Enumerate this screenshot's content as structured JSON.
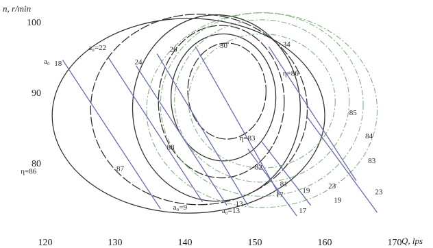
{
  "chart_data": {
    "type": "line",
    "xlabel": "Q, lps",
    "ylabel": "n, r/min",
    "x_ticks": [
      "120",
      "130",
      "140",
      "150",
      "160",
      "170"
    ],
    "y_ticks": [
      "80",
      "90",
      "100"
    ],
    "xlim": [
      120,
      170
    ],
    "ylim": [
      73,
      100
    ],
    "grid": false,
    "colors": {
      "blade": "#6a6ab8",
      "eff_inner": "#333333",
      "eff_outer": "#7fb07f",
      "text": "#222222"
    },
    "efficiency_contours": [
      {
        "value": 83,
        "label": "η=83",
        "style": "inner",
        "cx": 146,
        "cy": 90.2,
        "rx": 5.6,
        "ry": 6.8
      },
      {
        "value": 82,
        "label": "82",
        "style": "inner",
        "cx": 145.5,
        "cy": 89.3,
        "rx": 7.5,
        "ry": 9.0
      },
      {
        "value": 81,
        "label": "81",
        "style": "inner",
        "cx": 145.2,
        "cy": 88.7,
        "rx": 9.0,
        "ry": 10.8
      },
      {
        "value": 88,
        "label": "88",
        "style": "inner",
        "cx": 144.5,
        "cy": 87.8,
        "rx": 12.0,
        "ry": 13.2
      },
      {
        "value": 87,
        "label": "87",
        "style": "inner",
        "cx": 142.0,
        "cy": 87.6,
        "rx": 15.5,
        "ry": 13.5
      },
      {
        "value": 86,
        "label": "η=86",
        "style": "inner",
        "cx": 140.5,
        "cy": 86.7,
        "rx": 19.5,
        "ry": 13.8
      },
      {
        "value": 85,
        "label": "85",
        "style": "outer",
        "cx": 151.0,
        "cy": 88.8,
        "rx": 12.5,
        "ry": 11.5
      },
      {
        "value": 84,
        "label": "84",
        "style": "outer",
        "cx": 151.0,
        "cy": 88.3,
        "rx": 14.5,
        "ry": 13.0
      },
      {
        "value": 83,
        "label": "83",
        "style": "outer",
        "cx": 151.0,
        "cy": 87.5,
        "rx": 16.5,
        "ry": 13.8
      },
      {
        "value": 86,
        "label": "η=86",
        "style": "outer",
        "cx": 151.0,
        "cy": 88.8,
        "rx": 10.5,
        "ry": 9.5
      }
    ],
    "blade_angle_lines": [
      {
        "label": "18",
        "x1": 122.5,
        "y1": 94.6,
        "x2": 136.5,
        "y2": 73.5
      },
      {
        "label": "22",
        "x1": 129.0,
        "y1": 95.0,
        "x2": 142.5,
        "y2": 74.5
      },
      {
        "label": "24",
        "x1": 133.0,
        "y1": 93.8,
        "x2": 146.0,
        "y2": 74.0
      },
      {
        "label": "26",
        "x1": 136.0,
        "y1": 95.5,
        "x2": 149.0,
        "y2": 74.0
      },
      {
        "label": "30",
        "x1": 141.5,
        "y1": 96.5,
        "x2": 153.5,
        "y2": 75.5
      },
      {
        "label": "34",
        "x1": 152.0,
        "y1": 96.5,
        "x2": 164.5,
        "y2": 77.5
      },
      {
        "label": "17",
        "x1": 149.0,
        "y1": 82.0,
        "x2": 156.0,
        "y2": 72.5
      },
      {
        "label": "19",
        "x1": 151.0,
        "y1": 83.0,
        "x2": 158.0,
        "y2": 74.0
      },
      {
        "label": "23",
        "x1": 157.5,
        "y1": 86.5,
        "x2": 167.5,
        "y2": 73.0
      }
    ],
    "annotations": [
      {
        "text": "a₀",
        "x": 119.8,
        "y": 94.1
      },
      {
        "text": "18",
        "x": 121.3,
        "y": 93.8
      },
      {
        "text": "a₀=22",
        "x": 126.2,
        "y": 96.0
      },
      {
        "text": "24",
        "x": 132.8,
        "y": 94.0
      },
      {
        "text": "26",
        "x": 137.8,
        "y": 95.8
      },
      {
        "text": "30",
        "x": 145.0,
        "y": 96.3
      },
      {
        "text": "34",
        "x": 154.0,
        "y": 96.5
      },
      {
        "text": "η=86",
        "x": 154.0,
        "y": 92.4
      },
      {
        "text": "85",
        "x": 163.5,
        "y": 86.8
      },
      {
        "text": "84",
        "x": 165.8,
        "y": 83.5
      },
      {
        "text": "83",
        "x": 166.2,
        "y": 80.0
      },
      {
        "text": "88",
        "x": 137.4,
        "y": 81.9
      },
      {
        "text": "87",
        "x": 130.2,
        "y": 78.9
      },
      {
        "text": "η=86",
        "x": 116.5,
        "y": 78.5
      },
      {
        "text": "η=83",
        "x": 147.8,
        "y": 83.2
      },
      {
        "text": "82",
        "x": 150.0,
        "y": 79.1
      },
      {
        "text": "81",
        "x": 153.6,
        "y": 76.7
      },
      {
        "text": "17",
        "x": 153.0,
        "y": 75.2
      },
      {
        "text": "19",
        "x": 156.8,
        "y": 75.8
      },
      {
        "text": "23",
        "x": 160.5,
        "y": 76.4
      },
      {
        "text": "19",
        "x": 161.3,
        "y": 74.4
      },
      {
        "text": "23",
        "x": 167.2,
        "y": 75.6
      },
      {
        "text": "13",
        "x": 147.2,
        "y": 73.9
      },
      {
        "text": "17",
        "x": 156.3,
        "y": 72.9
      },
      {
        "text": "a₀=9",
        "x": 138.3,
        "y": 73.4
      },
      {
        "text": "a₀=13",
        "x": 145.3,
        "y": 72.9
      }
    ]
  }
}
